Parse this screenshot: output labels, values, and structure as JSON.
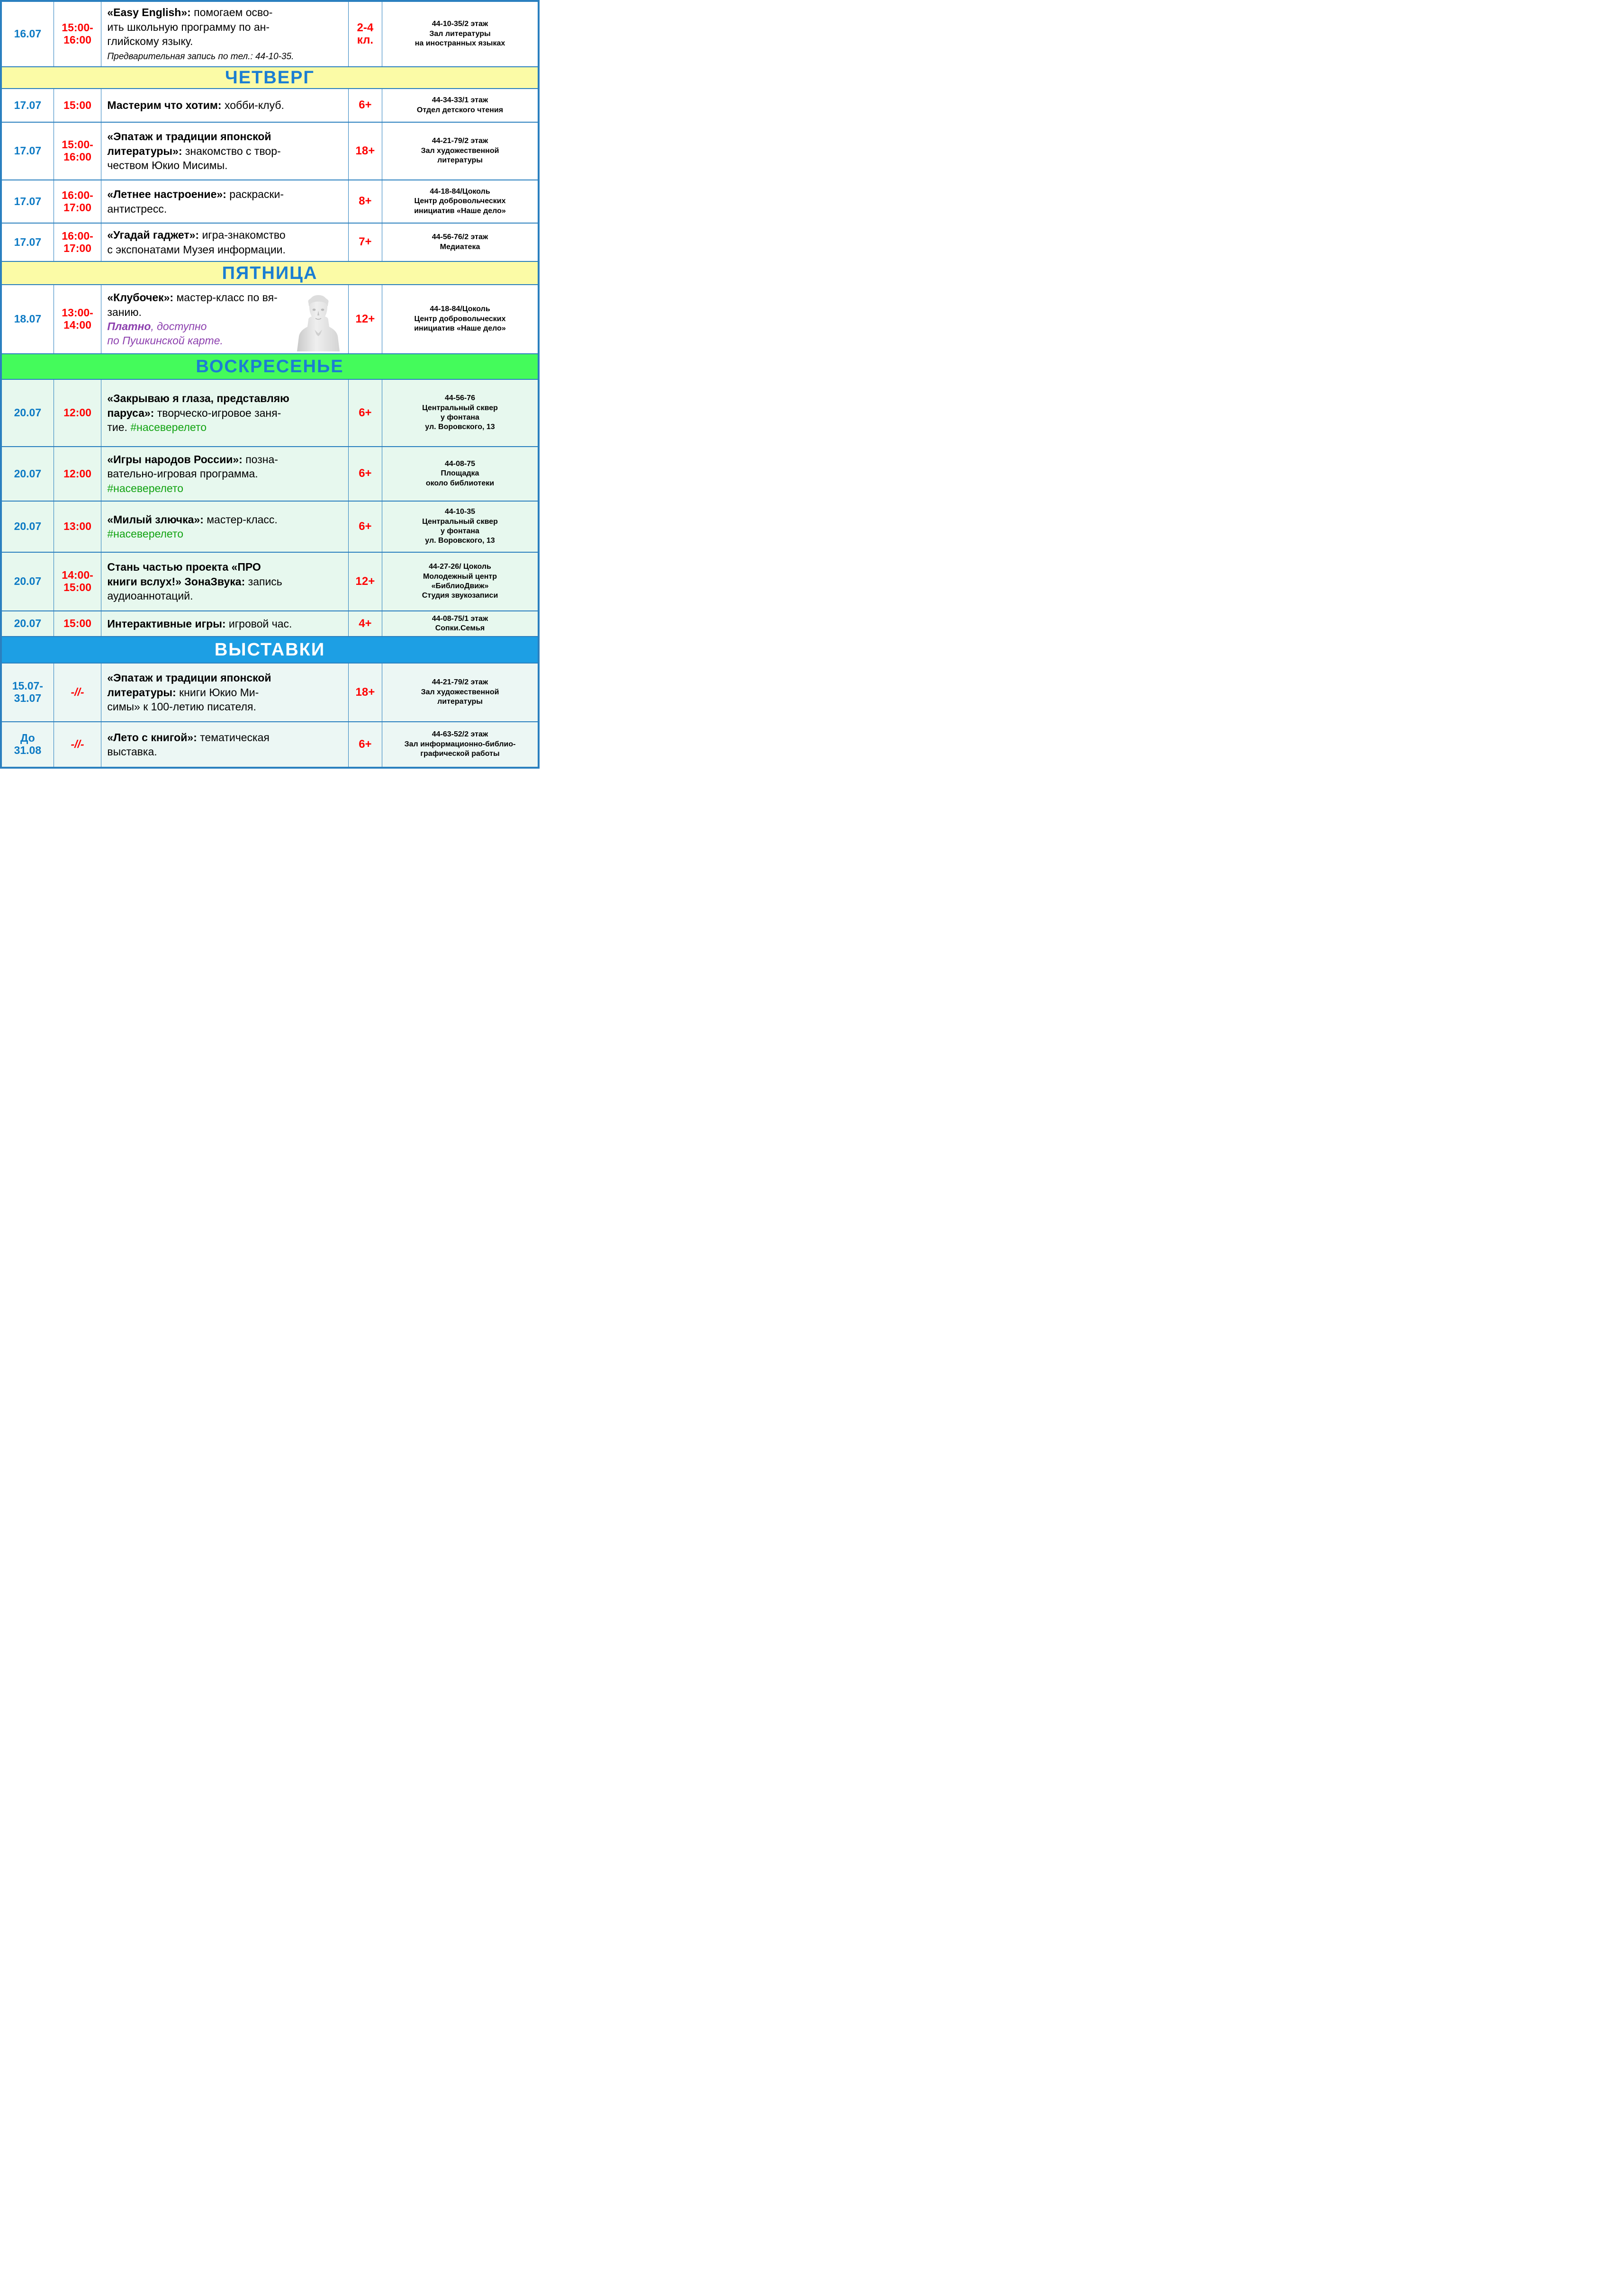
{
  "colors": {
    "border_blue": "#2b80bf",
    "date_blue": "#0d7ac4",
    "time_red": "#fe0000",
    "section_header_text_blue": "#1b7ed2",
    "section_yellow_bg": "#fbfba6",
    "section_green_bg": "#44fb5b",
    "section_blue_bg": "#1d9fe4",
    "sunday_row_bg": "#e7f8ee",
    "exhibition_row_bg": "#ecf7f4",
    "paid_note_purple": "#8c3fae",
    "hashtag_green": "#12a312"
  },
  "table": {
    "rows": [
      {
        "type": "event",
        "bg": "white",
        "date": "16.07",
        "time": "15:00-\n16:00",
        "age": "2-4\nкл.",
        "desc": [
          {
            "s": "b",
            "t": "«Easy English»: "
          },
          {
            "s": "r",
            "t": "помогаем осво-\nить школьную программу по ан-\nглийскому языку."
          },
          {
            "s": "i",
            "br": true,
            "t": "Предварительная запись по тел.: 44-10-35."
          }
        ],
        "loc": [
          "44-10-35/2 этаж",
          "Зал литературы",
          "на иностранных языках"
        ]
      },
      {
        "type": "section",
        "label": "ЧЕТВЕРГ",
        "style": "yellow"
      },
      {
        "type": "event",
        "bg": "white",
        "date": "17.07",
        "time": "15:00",
        "age": "6+",
        "desc": [
          {
            "s": "b",
            "t": "Мастерим что хотим:"
          },
          {
            "s": "r",
            "t": " хобби-клуб."
          }
        ],
        "loc": [
          "44-34-33/1 этаж",
          "Отдел детского чтения"
        ]
      },
      {
        "type": "event",
        "bg": "white",
        "date": "17.07",
        "time": "15:00-\n16:00",
        "age": "18+",
        "desc": [
          {
            "s": "b",
            "t": "«Эпатаж и традиции японской\nлитературы»:"
          },
          {
            "s": "r",
            "t": " знакомство с твор-\nчеством Юкио Мисимы."
          }
        ],
        "loc": [
          "44-21-79/2 этаж",
          "Зал художественной",
          "литературы"
        ]
      },
      {
        "type": "event",
        "bg": "white",
        "date": "17.07",
        "time": "16:00-\n17:00",
        "age": "8+",
        "desc": [
          {
            "s": "b",
            "t": "«Летнее настроение»:"
          },
          {
            "s": "r",
            "t": " раскраски-\nантистресс."
          }
        ],
        "loc": [
          "44-18-84/Цоколь",
          "Центр добровольческих",
          "инициатив «Наше дело»"
        ]
      },
      {
        "type": "event",
        "bg": "white",
        "date": "17.07",
        "time": "16:00-\n17:00",
        "age": "7+",
        "desc": [
          {
            "s": "b",
            "t": "«Угадай гаджет»:"
          },
          {
            "s": "r",
            "t": " игра-знакомство\nс экспонатами Музея информации."
          }
        ],
        "loc": [
          "44-56-76/2 этаж",
          "Медиатека"
        ]
      },
      {
        "type": "section",
        "label": "ПЯТНИЦА",
        "style": "yellow"
      },
      {
        "type": "event",
        "bg": "white",
        "image": "pushkin-bust",
        "date": "18.07",
        "time": "13:00-\n14:00",
        "age": "12+",
        "desc": [
          {
            "s": "b",
            "t": "«Клубочек»:"
          },
          {
            "s": "r",
            "t": " мастер-класс по вя-\nзанию."
          },
          {
            "s": "pb",
            "br": true,
            "t": "Платно"
          },
          {
            "s": "p",
            "t": ", доступно\nпо Пушкинской карте."
          }
        ],
        "loc": [
          "44-18-84/Цоколь",
          "Центр добровольческих",
          "инициатив «Наше дело»"
        ]
      },
      {
        "type": "section",
        "label": "ВОСКРЕСЕНЬЕ",
        "style": "green"
      },
      {
        "type": "event",
        "bg": "mint",
        "date": "20.07",
        "time": "12:00",
        "age": "6+",
        "desc": [
          {
            "s": "b",
            "t": "«Закрываю я глаза, представляю\nпаруса»:"
          },
          {
            "s": "r",
            "t": " творческо-игровое заня-\nтие. "
          },
          {
            "s": "tag",
            "t": "#насеверелето"
          }
        ],
        "loc": [
          "44-56-76",
          "Центральный сквер",
          "у фонтана",
          "ул. Воровского, 13"
        ]
      },
      {
        "type": "event",
        "bg": "mint",
        "date": "20.07",
        "time": "12:00",
        "age": "6+",
        "desc": [
          {
            "s": "b",
            "t": "«Игры народов России»:"
          },
          {
            "s": "r",
            "t": " позна-\nвательно-игровая программа."
          },
          {
            "s": "tag",
            "br": true,
            "t": "#насеверелето"
          }
        ],
        "loc": [
          "44-08-75",
          "Площадка",
          "около библиотеки"
        ]
      },
      {
        "type": "event",
        "bg": "mint",
        "date": "20.07",
        "time": "13:00",
        "age": "6+",
        "desc": [
          {
            "s": "b",
            "t": "«Милый злючка»:"
          },
          {
            "s": "r",
            "t": " мастер-класс."
          },
          {
            "s": "tag",
            "br": true,
            "t": "#насеверелето"
          }
        ],
        "loc": [
          "44-10-35",
          "Центральный сквер",
          "у фонтана",
          "ул. Воровского, 13"
        ]
      },
      {
        "type": "event",
        "bg": "mint",
        "date": "20.07",
        "time": "14:00-\n15:00",
        "age": "12+",
        "desc": [
          {
            "s": "b",
            "t": "Стань частью проекта «ПРО\nкниги вслух!» ЗонаЗвука:"
          },
          {
            "s": "r",
            "t": " запись\nаудиоаннотаций."
          }
        ],
        "loc": [
          "44-27-26/ Цоколь",
          "Молодежный центр",
          "«БиблиоДвиж»",
          "Студия звукозаписи"
        ]
      },
      {
        "type": "event",
        "bg": "mint",
        "date": "20.07",
        "time": "15:00",
        "age": "4+",
        "desc": [
          {
            "s": "b",
            "t": "Интерактивные игры:"
          },
          {
            "s": "r",
            "t": " игровой час."
          }
        ],
        "loc": [
          "44-08-75/1 этаж",
          "Сопки.Семья"
        ]
      },
      {
        "type": "section",
        "label": "ВЫСТАВКИ",
        "style": "blue"
      },
      {
        "type": "event",
        "bg": "expo",
        "date": "15.07-\n31.07",
        "time": "-//-",
        "age": "18+",
        "desc": [
          {
            "s": "b",
            "t": "«Эпатаж и традиции японской\nлитературы:"
          },
          {
            "s": "r",
            "t": " книги Юкио Ми-\nсимы» к 100-летию писателя."
          }
        ],
        "loc": [
          "44-21-79/2 этаж",
          "Зал художественной",
          "литературы"
        ]
      },
      {
        "type": "event",
        "bg": "expo",
        "date": "До\n31.08",
        "time": "-//-",
        "age": "6+",
        "desc": [
          {
            "s": "b",
            "t": "«Лето с книгой»:"
          },
          {
            "s": "r",
            "t": " тематическая\nвыставка."
          }
        ],
        "loc": [
          "44-63-52/2 этаж",
          "Зал информационно-библио-",
          "графической работы"
        ]
      }
    ]
  }
}
